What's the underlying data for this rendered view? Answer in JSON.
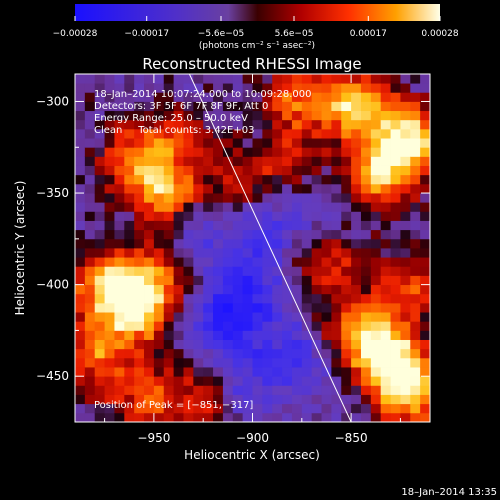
{
  "chart_data": {
    "type": "heatmap",
    "title": "Reconstructed RHESSI Image",
    "xlabel": "Heliocentric X (arcsec)",
    "ylabel": "Heliocentric Y (arcsec)",
    "xlim": [
      -990,
      -810
    ],
    "ylim": [
      -475,
      -285
    ],
    "x_ticks": [
      -950,
      -900,
      -850
    ],
    "x_tick_labels": [
      "−950",
      "−900",
      "−850"
    ],
    "y_ticks": [
      -300,
      -350,
      -400,
      -450
    ],
    "y_tick_labels": [
      "−300",
      "−350",
      "−400",
      "−450"
    ],
    "colorbar": {
      "range": [
        -0.00028,
        0.00028
      ],
      "ticks": [
        -0.00028,
        -0.00017,
        -5.6e-05,
        5.6e-05,
        0.00017,
        0.00028
      ],
      "tick_labels": [
        "−0.00028",
        "−0.00017",
        "−5.6e−05",
        "5.6e−05",
        "0.00017",
        "0.00028"
      ],
      "unit_label": "(photons cm⁻² s⁻¹ asec⁻²)"
    },
    "annotations": {
      "time_range": "18–Jan–2014 10:07:24.000 to 10:09:28.000",
      "detectors": "Detectors: 3F 5F 6F 7F 8F 9F, Att 0",
      "energy": "Energy Range: 25.0 – 50.0 keV",
      "clean": "Clean     Total counts: 3.42E+03",
      "peak": "Position of Peak = [−851,−317]"
    },
    "peak_position": [
      -851,
      -317
    ],
    "limb_line": {
      "x": [
        -932,
        -850
      ],
      "y": [
        -285,
        -475
      ]
    },
    "hot_regions": [
      {
        "x": -820,
        "y": -320,
        "strength": 1.0
      },
      {
        "x": -848,
        "y": -302,
        "strength": 0.9
      },
      {
        "x": -835,
        "y": -340,
        "strength": 0.85
      },
      {
        "x": -878,
        "y": -298,
        "strength": 0.6
      },
      {
        "x": -945,
        "y": -350,
        "strength": 0.75
      },
      {
        "x": -960,
        "y": -330,
        "strength": 0.6
      },
      {
        "x": -938,
        "y": -320,
        "strength": 0.45
      },
      {
        "x": -905,
        "y": -345,
        "strength": 0.4
      },
      {
        "x": -960,
        "y": -415,
        "strength": 0.9
      },
      {
        "x": -975,
        "y": -400,
        "strength": 0.75
      },
      {
        "x": -950,
        "y": -395,
        "strength": 0.6
      },
      {
        "x": -980,
        "y": -440,
        "strength": 0.6
      },
      {
        "x": -955,
        "y": -460,
        "strength": 0.55
      },
      {
        "x": -925,
        "y": -462,
        "strength": 0.45
      },
      {
        "x": -830,
        "y": -440,
        "strength": 0.95
      },
      {
        "x": -820,
        "y": -460,
        "strength": 0.85
      },
      {
        "x": -845,
        "y": -425,
        "strength": 0.7
      },
      {
        "x": -820,
        "y": -400,
        "strength": 0.55
      },
      {
        "x": -862,
        "y": -388,
        "strength": 0.5
      },
      {
        "x": -880,
        "y": -330,
        "strength": 0.35
      }
    ],
    "cold_regions": [
      {
        "x": -912,
        "y": -420,
        "strength": 1.0
      },
      {
        "x": -900,
        "y": -400,
        "strength": 0.7
      },
      {
        "x": -880,
        "y": -440,
        "strength": 0.7
      },
      {
        "x": -895,
        "y": -370,
        "strength": 0.5
      },
      {
        "x": -870,
        "y": -360,
        "strength": 0.35
      },
      {
        "x": -905,
        "y": -455,
        "strength": 0.5
      },
      {
        "x": -925,
        "y": -375,
        "strength": 0.4
      }
    ]
  },
  "footer": {
    "timestamp": "18–Jan–2014 13:35"
  }
}
